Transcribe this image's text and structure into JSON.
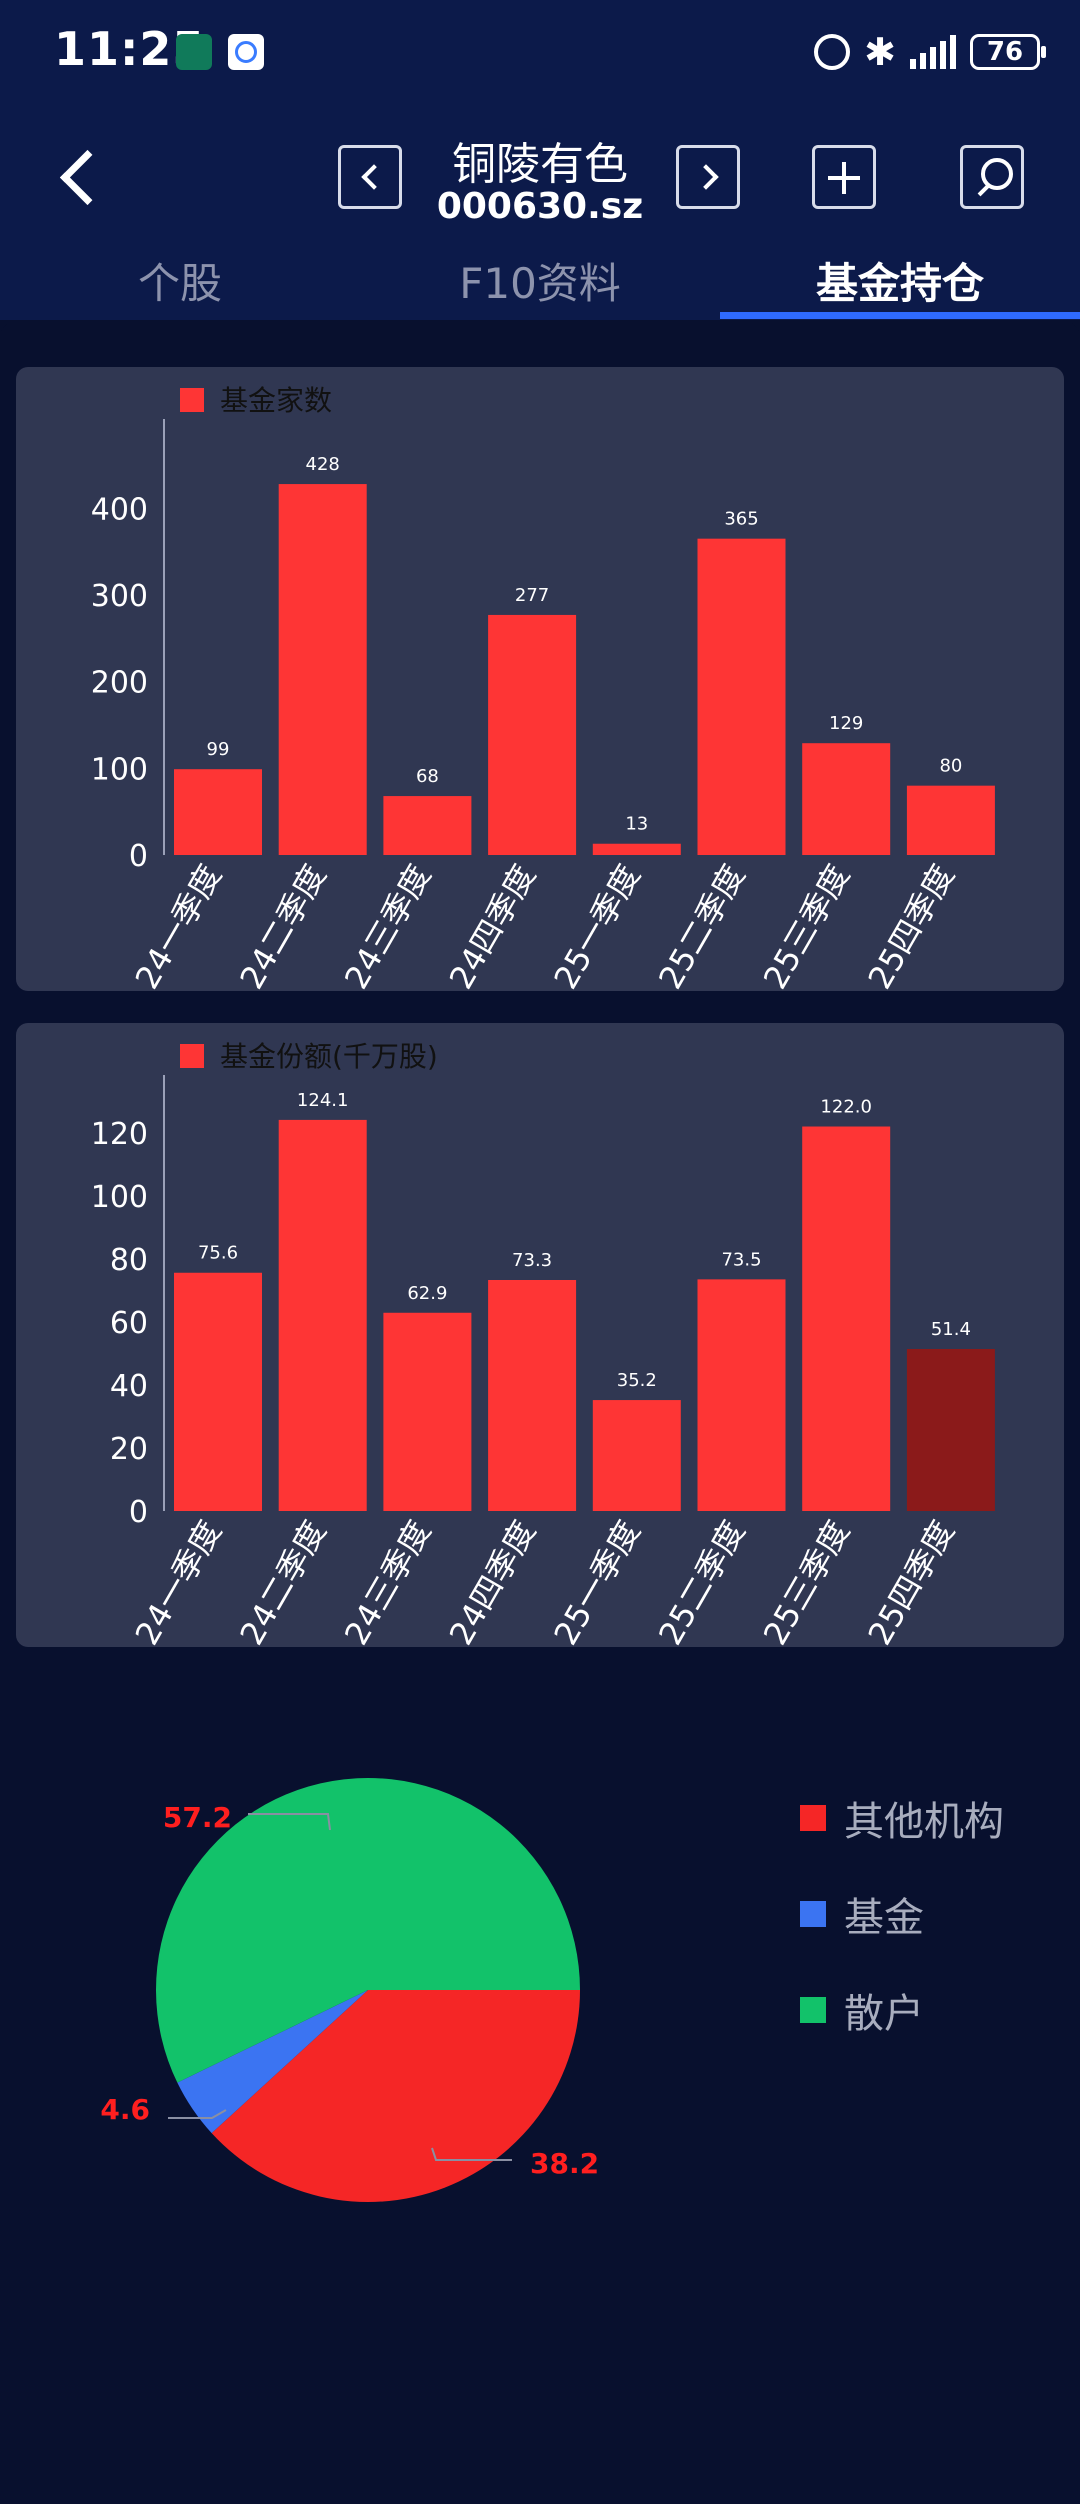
{
  "status_bar": {
    "time": "11:25",
    "battery": "76"
  },
  "header": {
    "stock_name": "铜陵有色",
    "stock_code": "000630.sz"
  },
  "tabs": [
    {
      "label": "个股"
    },
    {
      "label": "F10资料"
    },
    {
      "label": "基金持仓",
      "active": true
    }
  ],
  "colors": {
    "bar": "#fe3535",
    "bar_dark": "#8b1a1a",
    "panel": "#303752",
    "accent": "#2f6bff"
  },
  "chart_data": [
    {
      "type": "bar",
      "legend": "基金家数",
      "categories": [
        "24一季度",
        "24二季度",
        "24三季度",
        "24四季度",
        "25一季度",
        "25二季度",
        "25三季度",
        "25四季度"
      ],
      "values": [
        99,
        428,
        68,
        277,
        13,
        365,
        129,
        80
      ],
      "value_labels": [
        "99",
        "428",
        "68",
        "277",
        "13",
        "365",
        "129",
        "80"
      ],
      "ylim": [
        0,
        480
      ],
      "yticks": [
        0,
        100,
        200,
        300,
        400
      ]
    },
    {
      "type": "bar",
      "legend": "基金份额(千万股)",
      "categories": [
        "24一季度",
        "24二季度",
        "24三季度",
        "24四季度",
        "25一季度",
        "25二季度",
        "25三季度",
        "25四季度"
      ],
      "values": [
        75.6,
        124.1,
        62.9,
        73.3,
        35.2,
        73.5,
        122.0,
        51.4
      ],
      "value_labels": [
        "75.6",
        "124.1",
        "62.9",
        "73.3",
        "35.2",
        "73.5",
        "122.0",
        "51.4"
      ],
      "highlight_index": 7,
      "ylim": [
        0,
        132
      ],
      "yticks": [
        0,
        20,
        40,
        60,
        80,
        100,
        120
      ]
    },
    {
      "type": "pie",
      "slices": [
        {
          "name": "其他机构",
          "value": 38.2,
          "label": "38.2",
          "color": "#f52626"
        },
        {
          "name": "基金",
          "value": 4.6,
          "label": "4.6",
          "color": "#3b74f2"
        },
        {
          "name": "散户",
          "value": 57.2,
          "label": "57.2",
          "color": "#12c26a"
        }
      ]
    }
  ]
}
